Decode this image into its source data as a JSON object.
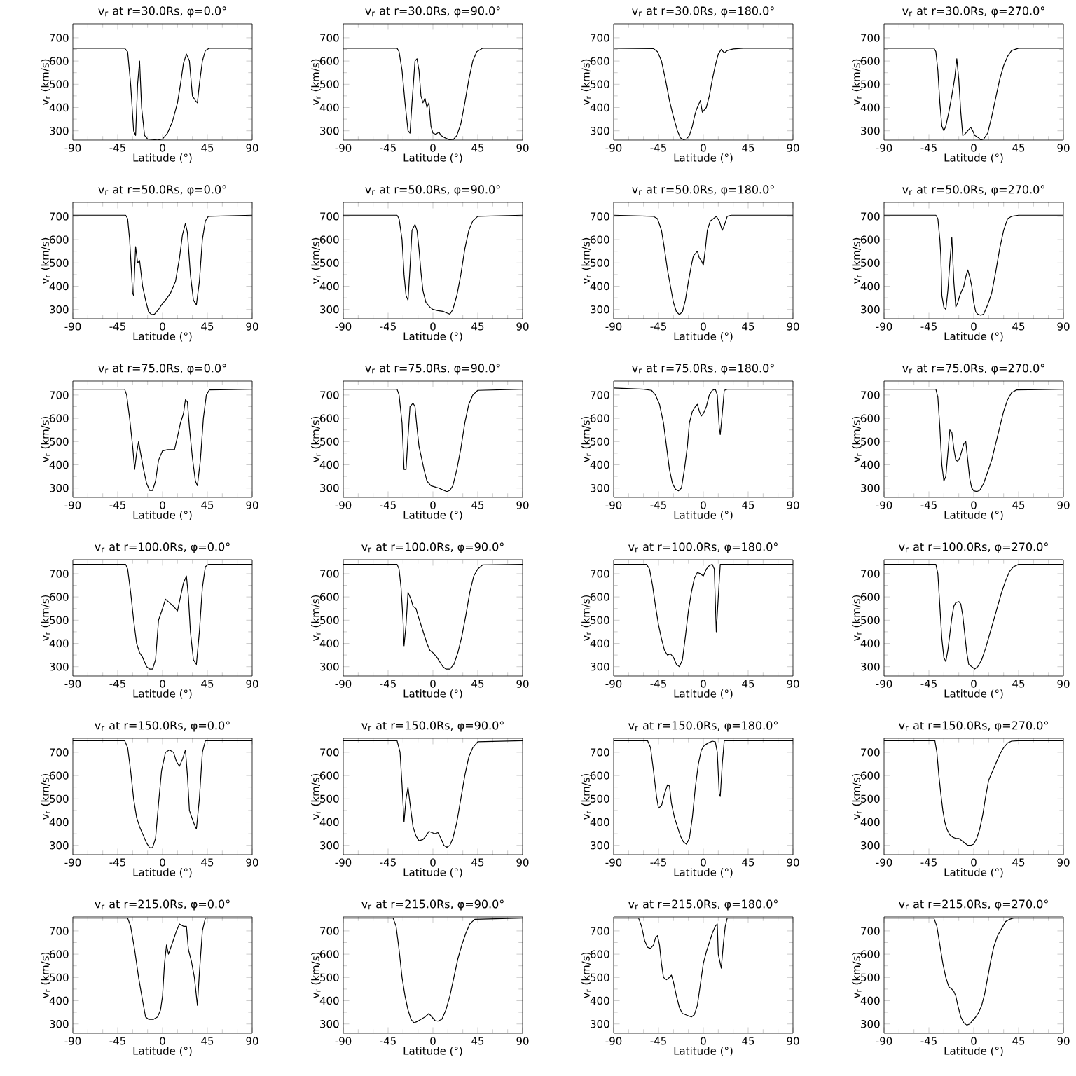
{
  "chart_data": [
    {
      "type": "line",
      "title": "v$_{r}$ at r=30.0Rs, φ=0.0°",
      "xlabel": "Latitude (°)",
      "ylabel": "v$_{r}$ (km/s)",
      "color": "#000000",
      "xlim": [
        -90,
        90
      ],
      "ylim": [
        260,
        760
      ],
      "xticks": [
        -90,
        -45,
        0,
        45,
        90
      ],
      "yticks": [
        300,
        400,
        500,
        600,
        700
      ],
      "x": [
        -90,
        -38,
        -35,
        -32,
        -29,
        -27,
        -25,
        -23,
        -21,
        -18,
        -15,
        -5,
        0,
        5,
        10,
        15,
        18,
        21,
        24,
        27,
        30,
        33,
        35,
        37,
        40,
        43,
        47,
        90
      ],
      "values": [
        655,
        655,
        640,
        500,
        300,
        280,
        500,
        600,
        400,
        280,
        265,
        260,
        265,
        290,
        340,
        420,
        500,
        590,
        630,
        600,
        450,
        430,
        420,
        500,
        600,
        645,
        655,
        655
      ]
    },
    {
      "type": "line",
      "title": "v$_{r}$ at r=30.0Rs, φ=90.0°",
      "xlabel": "Latitude (°)",
      "ylabel": "v$_{r}$ (km/s)",
      "color": "#000000",
      "xlim": [
        -90,
        90
      ],
      "ylim": [
        260,
        760
      ],
      "xticks": [
        -90,
        -45,
        0,
        45,
        90
      ],
      "yticks": [
        300,
        400,
        500,
        600,
        700
      ],
      "x": [
        -90,
        -36,
        -34,
        -31,
        -28,
        -25,
        -23,
        -21,
        -18,
        -16,
        -14,
        -12,
        -10,
        -8,
        -6,
        -4,
        -2,
        0,
        3,
        6,
        8,
        12,
        16,
        20,
        24,
        28,
        32,
        36,
        40,
        44,
        50,
        90
      ],
      "values": [
        655,
        655,
        640,
        560,
        420,
        300,
        290,
        420,
        600,
        610,
        560,
        450,
        420,
        440,
        400,
        420,
        320,
        290,
        285,
        295,
        280,
        270,
        262,
        260,
        280,
        330,
        420,
        520,
        600,
        640,
        655,
        655
      ]
    },
    {
      "type": "line",
      "title": "v$_{r}$ at r=30.0Rs, φ=180.0°",
      "xlabel": "Latitude (°)",
      "ylabel": "v$_{r}$ (km/s)",
      "color": "#000000",
      "xlim": [
        -90,
        90
      ],
      "ylim": [
        260,
        760
      ],
      "xticks": [
        -90,
        -45,
        0,
        45,
        90
      ],
      "yticks": [
        300,
        400,
        500,
        600,
        700
      ],
      "x": [
        -90,
        -50,
        -46,
        -42,
        -38,
        -34,
        -30,
        -26,
        -23,
        -20,
        -17,
        -14,
        -11,
        -9,
        -7,
        -5,
        -3,
        -1,
        1,
        3,
        6,
        9,
        12,
        15,
        18,
        21,
        24,
        30,
        40,
        90
      ],
      "values": [
        655,
        653,
        640,
        600,
        520,
        430,
        360,
        300,
        270,
        262,
        265,
        280,
        320,
        360,
        390,
        410,
        430,
        380,
        390,
        400,
        450,
        520,
        580,
        630,
        650,
        635,
        645,
        652,
        655,
        655
      ]
    },
    {
      "type": "line",
      "title": "v$_{r}$ at r=30.0Rs, φ=270.0°",
      "xlabel": "Latitude (°)",
      "ylabel": "v$_{r}$ (km/s)",
      "color": "#000000",
      "xlim": [
        -90,
        90
      ],
      "ylim": [
        260,
        760
      ],
      "xticks": [
        -90,
        -45,
        0,
        45,
        90
      ],
      "yticks": [
        300,
        400,
        500,
        600,
        700
      ],
      "x": [
        -90,
        -40,
        -38,
        -36,
        -34,
        -32,
        -30,
        -28,
        -25,
        -22,
        -19,
        -17,
        -15,
        -13,
        -11,
        -9,
        -6,
        -3,
        -1,
        1,
        3,
        5,
        7,
        10,
        14,
        18,
        22,
        26,
        30,
        34,
        38,
        45,
        90
      ],
      "values": [
        655,
        655,
        640,
        560,
        420,
        320,
        300,
        320,
        380,
        450,
        530,
        610,
        520,
        380,
        280,
        285,
        300,
        315,
        300,
        280,
        275,
        270,
        260,
        265,
        290,
        360,
        440,
        520,
        580,
        620,
        645,
        655,
        655
      ]
    },
    {
      "type": "line",
      "title": "v$_{r}$ at r=50.0Rs, φ=0.0°",
      "xlabel": "Latitude (°)",
      "ylabel": "v$_{r}$ (km/s)",
      "color": "#000000",
      "xlim": [
        -90,
        90
      ],
      "ylim": [
        260,
        760
      ],
      "xticks": [
        -90,
        -45,
        0,
        45,
        90
      ],
      "yticks": [
        300,
        400,
        500,
        600,
        700
      ],
      "x": [
        -90,
        -37,
        -35,
        -33,
        -31,
        -30,
        -29,
        -27,
        -25,
        -23,
        -20,
        -17,
        -14,
        -11,
        -8,
        -4,
        -1,
        3,
        8,
        13,
        17,
        20,
        23,
        25,
        28,
        31,
        34,
        37,
        40,
        43,
        46,
        90
      ],
      "values": [
        705,
        705,
        690,
        600,
        450,
        370,
        360,
        570,
        500,
        510,
        400,
        340,
        290,
        278,
        280,
        300,
        320,
        340,
        370,
        420,
        520,
        620,
        670,
        630,
        450,
        340,
        320,
        420,
        600,
        680,
        700,
        705
      ]
    },
    {
      "type": "line",
      "title": "v$_{r}$ at r=50.0Rs, φ=90.0°",
      "xlabel": "Latitude (°)",
      "ylabel": "v$_{r}$ (km/s)",
      "color": "#000000",
      "xlim": [
        -90,
        90
      ],
      "ylim": [
        260,
        760
      ],
      "xticks": [
        -90,
        -45,
        0,
        45,
        90
      ],
      "yticks": [
        300,
        400,
        500,
        600,
        700
      ],
      "x": [
        -90,
        -36,
        -34,
        -31,
        -29,
        -27,
        -25,
        -23,
        -21,
        -18,
        -16,
        -14,
        -12,
        -10,
        -7,
        -3,
        0,
        5,
        10,
        14,
        17,
        20,
        24,
        28,
        32,
        36,
        40,
        45,
        90
      ],
      "values": [
        705,
        705,
        690,
        600,
        450,
        360,
        340,
        480,
        640,
        665,
        640,
        560,
        460,
        380,
        330,
        310,
        300,
        295,
        292,
        285,
        280,
        300,
        360,
        450,
        560,
        640,
        680,
        700,
        705
      ]
    },
    {
      "type": "line",
      "title": "v$_{r}$ at r=50.0Rs, φ=180.0°",
      "xlabel": "Latitude (°)",
      "ylabel": "v$_{r}$ (km/s)",
      "color": "#000000",
      "xlim": [
        -90,
        90
      ],
      "ylim": [
        260,
        760
      ],
      "xticks": [
        -90,
        -45,
        0,
        45,
        90
      ],
      "yticks": [
        300,
        400,
        500,
        600,
        700
      ],
      "x": [
        -90,
        -50,
        -46,
        -42,
        -39,
        -36,
        -33,
        -30,
        -27,
        -24,
        -21,
        -18,
        -15,
        -12,
        -10,
        -8,
        -6,
        -4,
        -2,
        0,
        2,
        4,
        7,
        10,
        13,
        16,
        19,
        21,
        24,
        28,
        90
      ],
      "values": [
        705,
        700,
        690,
        640,
        560,
        470,
        400,
        330,
        290,
        278,
        290,
        340,
        420,
        490,
        530,
        540,
        550,
        520,
        510,
        490,
        560,
        640,
        680,
        690,
        700,
        680,
        640,
        660,
        700,
        705,
        705
      ]
    },
    {
      "type": "line",
      "title": "v$_{r}$ at r=50.0Rs, φ=270.0°",
      "xlabel": "Latitude (°)",
      "ylabel": "v$_{r}$ (km/s)",
      "color": "#000000",
      "xlim": [
        -90,
        90
      ],
      "ylim": [
        260,
        760
      ],
      "xticks": [
        -90,
        -45,
        0,
        45,
        90
      ],
      "yticks": [
        300,
        400,
        500,
        600,
        700
      ],
      "x": [
        -90,
        -38,
        -36,
        -34,
        -33,
        -32,
        -30,
        -28,
        -26,
        -24,
        -22,
        -20,
        -18,
        -16,
        -14,
        -12,
        -10,
        -8,
        -6,
        -4,
        -2,
        0,
        2,
        4,
        7,
        10,
        14,
        18,
        22,
        26,
        30,
        34,
        38,
        45,
        90
      ],
      "values": [
        705,
        705,
        690,
        600,
        530,
        360,
        310,
        300,
        380,
        500,
        610,
        420,
        310,
        330,
        360,
        380,
        400,
        440,
        470,
        440,
        400,
        330,
        290,
        280,
        275,
        280,
        320,
        370,
        460,
        560,
        640,
        690,
        700,
        705,
        705
      ]
    },
    {
      "type": "line",
      "title": "v$_{r}$ at r=75.0Rs, φ=0.0°",
      "xlabel": "Latitude (°)",
      "ylabel": "v$_{r}$ (km/s)",
      "color": "#000000",
      "xlim": [
        -90,
        90
      ],
      "ylim": [
        260,
        760
      ],
      "xticks": [
        -90,
        -45,
        0,
        45,
        90
      ],
      "yticks": [
        300,
        400,
        500,
        600,
        700
      ],
      "x": [
        -90,
        -38,
        -36,
        -33,
        -30,
        -28,
        -26,
        -24,
        -22,
        -19,
        -16,
        -13,
        -10,
        -7,
        -4,
        0,
        5,
        12,
        15,
        18,
        21,
        23,
        25,
        27,
        30,
        33,
        35,
        38,
        41,
        44,
        47,
        90
      ],
      "values": [
        725,
        725,
        700,
        600,
        480,
        380,
        450,
        500,
        450,
        380,
        320,
        290,
        290,
        330,
        420,
        460,
        465,
        465,
        520,
        580,
        620,
        680,
        670,
        560,
        430,
        330,
        310,
        420,
        600,
        700,
        722,
        725
      ]
    },
    {
      "type": "line",
      "title": "v$_{r}$ at r=75.0Rs, φ=90.0°",
      "xlabel": "Latitude (°)",
      "ylabel": "v$_{r}$ (km/s)",
      "color": "#000000",
      "xlim": [
        -90,
        90
      ],
      "ylim": [
        260,
        760
      ],
      "xticks": [
        -90,
        -45,
        0,
        45,
        90
      ],
      "yticks": [
        300,
        400,
        500,
        600,
        700
      ],
      "x": [
        -90,
        -36,
        -34,
        -31,
        -29,
        -27,
        -25,
        -23,
        -20,
        -18,
        -16,
        -14,
        -12,
        -9,
        -6,
        -2,
        2,
        6,
        10,
        14,
        17,
        20,
        24,
        28,
        32,
        36,
        40,
        45,
        90
      ],
      "values": [
        725,
        725,
        700,
        580,
        380,
        380,
        520,
        650,
        665,
        650,
        560,
        480,
        440,
        380,
        330,
        310,
        305,
        300,
        292,
        285,
        290,
        310,
        380,
        470,
        580,
        660,
        700,
        720,
        725
      ]
    },
    {
      "type": "line",
      "title": "v$_{r}$ at r=75.0Rs, φ=180.0°",
      "xlabel": "Latitude (°)",
      "ylabel": "v$_{r}$ (km/s)",
      "color": "#000000",
      "xlim": [
        -90,
        90
      ],
      "ylim": [
        260,
        760
      ],
      "xticks": [
        -90,
        -45,
        0,
        45,
        90
      ],
      "yticks": [
        300,
        400,
        500,
        600,
        700
      ],
      "x": [
        -90,
        -60,
        -52,
        -48,
        -44,
        -40,
        -37,
        -34,
        -31,
        -28,
        -25,
        -22,
        -19,
        -16,
        -14,
        -11,
        -8,
        -6,
        -4,
        -2,
        0,
        3,
        6,
        9,
        12,
        14,
        16,
        17,
        19,
        21,
        24,
        90
      ],
      "values": [
        730,
        725,
        720,
        700,
        660,
        580,
        480,
        380,
        320,
        295,
        288,
        300,
        380,
        480,
        580,
        630,
        650,
        660,
        630,
        610,
        620,
        650,
        700,
        720,
        725,
        700,
        560,
        530,
        620,
        720,
        725,
        725
      ]
    },
    {
      "type": "line",
      "title": "v$_{r}$ at r=75.0Rs, φ=270.0°",
      "xlabel": "Latitude (°)",
      "ylabel": "v$_{r}$ (km/s)",
      "color": "#000000",
      "xlim": [
        -90,
        90
      ],
      "ylim": [
        260,
        760
      ],
      "xticks": [
        -90,
        -45,
        0,
        45,
        90
      ],
      "yticks": [
        300,
        400,
        500,
        600,
        700
      ],
      "x": [
        -90,
        -38,
        -36,
        -34,
        -32,
        -30,
        -28,
        -26,
        -24,
        -22,
        -20,
        -18,
        -16,
        -14,
        -12,
        -10,
        -8,
        -6,
        -4,
        -2,
        0,
        3,
        6,
        10,
        14,
        18,
        22,
        26,
        30,
        34,
        38,
        43,
        90
      ],
      "values": [
        725,
        725,
        690,
        560,
        400,
        330,
        350,
        450,
        550,
        540,
        470,
        420,
        415,
        430,
        460,
        490,
        500,
        420,
        340,
        300,
        288,
        285,
        290,
        320,
        370,
        420,
        490,
        560,
        630,
        680,
        710,
        722,
        725
      ]
    },
    {
      "type": "line",
      "title": "v$_{r}$ at r=100.0Rs, φ=0.0°",
      "xlabel": "Latitude (°)",
      "ylabel": "v$_{r}$ (km/s)",
      "color": "#000000",
      "xlim": [
        -90,
        90
      ],
      "ylim": [
        260,
        760
      ],
      "xticks": [
        -90,
        -45,
        0,
        45,
        90
      ],
      "yticks": [
        300,
        400,
        500,
        600,
        700
      ],
      "x": [
        -90,
        -37,
        -35,
        -32,
        -29,
        -26,
        -23,
        -20,
        -16,
        -13,
        -10,
        -7,
        -4,
        0,
        3,
        7,
        11,
        15,
        18,
        21,
        24,
        26,
        28,
        31,
        34,
        37,
        40,
        43,
        46,
        90
      ],
      "values": [
        740,
        740,
        720,
        620,
        500,
        400,
        360,
        340,
        300,
        290,
        290,
        330,
        500,
        550,
        590,
        575,
        560,
        540,
        600,
        660,
        690,
        600,
        450,
        330,
        310,
        450,
        640,
        730,
        740,
        740
      ]
    },
    {
      "type": "line",
      "title": "v$_{r}$ at r=100.0Rs, φ=90.0°",
      "xlabel": "Latitude (°)",
      "ylabel": "v$_{r}$ (km/s)",
      "color": "#000000",
      "xlim": [
        -90,
        90
      ],
      "ylim": [
        260,
        760
      ],
      "xticks": [
        -90,
        -45,
        0,
        45,
        90
      ],
      "yticks": [
        300,
        400,
        500,
        600,
        700
      ],
      "x": [
        -90,
        -36,
        -34,
        -32,
        -30,
        -29,
        -27,
        -25,
        -22,
        -20,
        -17,
        -15,
        -12,
        -9,
        -6,
        -3,
        0,
        4,
        7,
        10,
        13,
        17,
        21,
        25,
        29,
        33,
        37,
        41,
        45,
        50,
        90
      ],
      "values": [
        740,
        740,
        720,
        640,
        500,
        390,
        480,
        620,
        590,
        560,
        550,
        520,
        480,
        440,
        400,
        370,
        360,
        340,
        320,
        300,
        290,
        290,
        310,
        360,
        430,
        520,
        620,
        690,
        720,
        738,
        740
      ]
    },
    {
      "type": "line",
      "title": "v$_{r}$ at r=100.0Rs, φ=180.0°",
      "xlabel": "Latitude (°)",
      "ylabel": "v$_{r}$ (km/s)",
      "color": "#000000",
      "xlim": [
        -90,
        90
      ],
      "ylim": [
        260,
        760
      ],
      "xticks": [
        -90,
        -45,
        0,
        45,
        90
      ],
      "yticks": [
        300,
        400,
        500,
        600,
        700
      ],
      "x": [
        -90,
        -57,
        -54,
        -51,
        -48,
        -45,
        -42,
        -39,
        -36,
        -33,
        -30,
        -27,
        -24,
        -21,
        -18,
        -15,
        -12,
        -9,
        -6,
        -3,
        0,
        3,
        6,
        9,
        11,
        13,
        15,
        17,
        20,
        90
      ],
      "values": [
        740,
        740,
        720,
        650,
        560,
        480,
        420,
        370,
        350,
        355,
        340,
        310,
        300,
        330,
        430,
        540,
        620,
        680,
        705,
        700,
        690,
        720,
        735,
        740,
        720,
        450,
        600,
        740,
        740,
        740
      ]
    },
    {
      "type": "line",
      "title": "v$_{r}$ at r=100.0Rs, φ=270.0°",
      "xlabel": "Latitude (°)",
      "ylabel": "v$_{r}$ (km/s)",
      "color": "#000000",
      "xlim": [
        -90,
        90
      ],
      "ylim": [
        260,
        760
      ],
      "xticks": [
        -90,
        -45,
        0,
        45,
        90
      ],
      "yticks": [
        300,
        400,
        500,
        600,
        700
      ],
      "x": [
        -90,
        -38,
        -36,
        -34,
        -32,
        -30,
        -28,
        -26,
        -24,
        -22,
        -20,
        -18,
        -15,
        -13,
        -11,
        -9,
        -7,
        -5,
        -2,
        1,
        4,
        8,
        12,
        16,
        20,
        24,
        28,
        32,
        36,
        40,
        45,
        90
      ],
      "values": [
        740,
        740,
        700,
        560,
        420,
        340,
        322,
        370,
        440,
        510,
        560,
        575,
        580,
        570,
        520,
        440,
        360,
        310,
        300,
        290,
        300,
        330,
        380,
        440,
        500,
        560,
        620,
        670,
        710,
        730,
        740,
        740
      ]
    },
    {
      "type": "line",
      "title": "v$_{r}$ at r=150.0Rs, φ=0.0°",
      "xlabel": "Latitude (°)",
      "ylabel": "v$_{r}$ (km/s)",
      "color": "#000000",
      "xlim": [
        -90,
        90
      ],
      "ylim": [
        260,
        760
      ],
      "xticks": [
        -90,
        -45,
        0,
        45,
        90
      ],
      "yticks": [
        300,
        400,
        500,
        600,
        700
      ],
      "x": [
        -90,
        -38,
        -35,
        -32,
        -29,
        -26,
        -23,
        -20,
        -16,
        -13,
        -10,
        -7,
        -4,
        -1,
        3,
        7,
        11,
        14,
        17,
        20,
        23,
        25,
        27,
        31,
        34,
        37,
        40,
        43,
        90
      ],
      "values": [
        750,
        750,
        720,
        620,
        500,
        420,
        380,
        350,
        310,
        290,
        290,
        330,
        480,
        620,
        700,
        710,
        700,
        660,
        640,
        670,
        710,
        600,
        450,
        400,
        370,
        500,
        700,
        750,
        750
      ]
    },
    {
      "type": "line",
      "title": "v$_{r}$ at r=150.0Rs, φ=90.0°",
      "xlabel": "Latitude (°)",
      "ylabel": "v$_{r}$ (km/s)",
      "color": "#000000",
      "xlim": [
        -90,
        90
      ],
      "ylim": [
        260,
        760
      ],
      "xticks": [
        -90,
        -45,
        0,
        45,
        90
      ],
      "yticks": [
        300,
        400,
        500,
        600,
        700
      ],
      "x": [
        -90,
        -36,
        -33,
        -31,
        -29,
        -27,
        -25,
        -23,
        -20,
        -17,
        -14,
        -10,
        -7,
        -4,
        -1,
        2,
        5,
        8,
        11,
        14,
        17,
        20,
        24,
        28,
        32,
        36,
        40,
        45,
        90
      ],
      "values": [
        750,
        750,
        700,
        560,
        400,
        500,
        550,
        480,
        380,
        340,
        320,
        325,
        340,
        360,
        355,
        350,
        355,
        330,
        300,
        292,
        300,
        330,
        400,
        500,
        600,
        680,
        720,
        745,
        750
      ]
    },
    {
      "type": "line",
      "title": "v$_{r}$ at r=150.0Rs, φ=180.0°",
      "xlabel": "Latitude (°)",
      "ylabel": "v$_{r}$ (km/s)",
      "color": "#000000",
      "xlim": [
        -90,
        90
      ],
      "ylim": [
        260,
        760
      ],
      "xticks": [
        -90,
        -45,
        0,
        45,
        90
      ],
      "yticks": [
        300,
        400,
        500,
        600,
        700
      ],
      "x": [
        -90,
        -56,
        -53,
        -50,
        -47,
        -45,
        -42,
        -39,
        -36,
        -34,
        -32,
        -29,
        -26,
        -23,
        -20,
        -17,
        -14,
        -11,
        -8,
        -5,
        -2,
        1,
        5,
        9,
        12,
        14,
        16,
        17,
        19,
        21,
        25,
        90
      ],
      "values": [
        750,
        750,
        720,
        620,
        510,
        460,
        470,
        520,
        560,
        555,
        480,
        420,
        380,
        340,
        315,
        305,
        330,
        420,
        550,
        650,
        710,
        730,
        740,
        748,
        745,
        700,
        520,
        510,
        650,
        750,
        750,
        750
      ]
    },
    {
      "type": "line",
      "title": "v$_{r}$ at r=150.0Rs, φ=270.0°",
      "xlabel": "Latitude (°)",
      "ylabel": "v$_{r}$ (km/s)",
      "color": "#000000",
      "xlim": [
        -90,
        90
      ],
      "ylim": [
        260,
        760
      ],
      "xticks": [
        -90,
        -45,
        0,
        45,
        90
      ],
      "yticks": [
        300,
        400,
        500,
        600,
        700
      ],
      "x": [
        -90,
        -39,
        -37,
        -35,
        -33,
        -31,
        -29,
        -27,
        -24,
        -21,
        -18,
        -15,
        -12,
        -9,
        -6,
        -3,
        0,
        3,
        6,
        9,
        12,
        15,
        18,
        22,
        26,
        30,
        34,
        38,
        45,
        90
      ],
      "values": [
        750,
        750,
        700,
        600,
        520,
        450,
        400,
        370,
        345,
        335,
        330,
        330,
        320,
        310,
        300,
        300,
        305,
        330,
        370,
        430,
        510,
        580,
        610,
        650,
        690,
        720,
        740,
        748,
        750,
        750
      ]
    },
    {
      "type": "line",
      "title": "v$_{r}$ at r=215.0Rs, φ=0.0°",
      "xlabel": "Latitude (°)",
      "ylabel": "v$_{r}$ (km/s)",
      "color": "#000000",
      "xlim": [
        -90,
        90
      ],
      "ylim": [
        260,
        760
      ],
      "xticks": [
        -90,
        -45,
        0,
        45,
        90
      ],
      "yticks": [
        300,
        400,
        500,
        600,
        700
      ],
      "x": [
        -90,
        -35,
        -32,
        -28,
        -24,
        -20,
        -17,
        -14,
        -9,
        -5,
        -2,
        0,
        2,
        4,
        6,
        10,
        14,
        17,
        21,
        24,
        26,
        29,
        32,
        35,
        37,
        40,
        43,
        90
      ],
      "values": [
        755,
        755,
        720,
        620,
        500,
        400,
        330,
        320,
        320,
        330,
        360,
        420,
        560,
        640,
        600,
        650,
        700,
        730,
        720,
        720,
        620,
        570,
        500,
        380,
        520,
        700,
        755,
        755
      ]
    },
    {
      "type": "line",
      "title": "v$_{r}$ at r=215.0Rs, φ=90.0°",
      "xlabel": "Latitude (°)",
      "ylabel": "v$_{r}$ (km/s)",
      "color": "#000000",
      "xlim": [
        -90,
        90
      ],
      "ylim": [
        260,
        760
      ],
      "xticks": [
        -90,
        -45,
        0,
        45,
        90
      ],
      "yticks": [
        300,
        400,
        500,
        600,
        700
      ],
      "x": [
        -90,
        -40,
        -37,
        -34,
        -31,
        -28,
        -25,
        -22,
        -19,
        -16,
        -12,
        -8,
        -4,
        -1,
        2,
        5,
        9,
        13,
        17,
        21,
        25,
        29,
        33,
        37,
        42,
        90
      ],
      "values": [
        755,
        755,
        720,
        620,
        500,
        420,
        360,
        320,
        305,
        310,
        320,
        330,
        345,
        330,
        315,
        312,
        320,
        360,
        420,
        500,
        580,
        640,
        690,
        730,
        750,
        755
      ]
    },
    {
      "type": "line",
      "title": "v$_{r}$ at r=215.0Rs, φ=180.0°",
      "xlabel": "Latitude (°)",
      "ylabel": "v$_{r}$ (km/s)",
      "color": "#000000",
      "xlim": [
        -90,
        90
      ],
      "ylim": [
        260,
        760
      ],
      "xticks": [
        -90,
        -45,
        0,
        45,
        90
      ],
      "yticks": [
        300,
        400,
        500,
        600,
        700
      ],
      "x": [
        -90,
        -65,
        -62,
        -59,
        -56,
        -53,
        -50,
        -48,
        -46,
        -44,
        -42,
        -40,
        -37,
        -34,
        -32,
        -30,
        -27,
        -24,
        -21,
        -18,
        -15,
        -12,
        -9,
        -6,
        -3,
        0,
        3,
        6,
        9,
        12,
        14,
        15,
        17,
        18,
        20,
        22,
        24,
        90
      ],
      "values": [
        755,
        755,
        720,
        660,
        630,
        625,
        640,
        670,
        680,
        640,
        560,
        500,
        490,
        500,
        510,
        480,
        420,
        370,
        345,
        340,
        335,
        330,
        340,
        380,
        470,
        560,
        610,
        650,
        690,
        720,
        730,
        600,
        560,
        540,
        640,
        720,
        755,
        755
      ]
    },
    {
      "type": "line",
      "title": "v$_{r}$ at r=215.0Rs, φ=270.0°",
      "xlabel": "Latitude (°)",
      "ylabel": "v$_{r}$ (km/s)",
      "color": "#000000",
      "xlim": [
        -90,
        90
      ],
      "ylim": [
        260,
        760
      ],
      "xticks": [
        -90,
        -45,
        0,
        45,
        90
      ],
      "yticks": [
        300,
        400,
        500,
        600,
        700
      ],
      "x": [
        -90,
        -40,
        -37,
        -34,
        -31,
        -28,
        -25,
        -22,
        -20,
        -18,
        -16,
        -13,
        -10,
        -7,
        -4,
        -1,
        2,
        5,
        8,
        11,
        14,
        17,
        20,
        24,
        28,
        32,
        36,
        40,
        90
      ],
      "values": [
        755,
        755,
        720,
        640,
        560,
        500,
        460,
        450,
        440,
        420,
        380,
        330,
        305,
        295,
        300,
        315,
        330,
        350,
        380,
        430,
        500,
        570,
        630,
        680,
        710,
        740,
        750,
        755,
        755
      ]
    }
  ]
}
